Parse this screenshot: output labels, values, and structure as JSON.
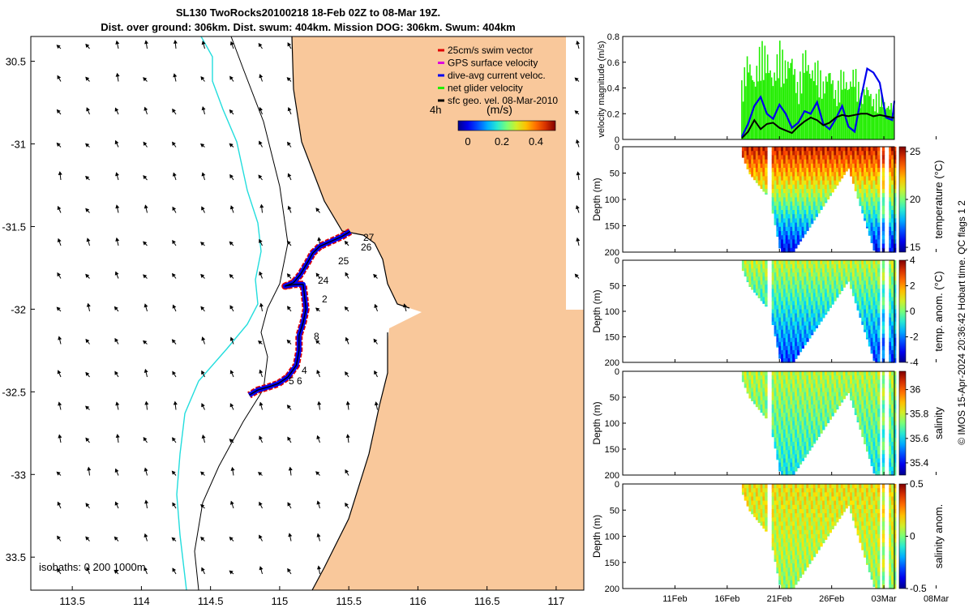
{
  "header": {
    "title_line1": "SL130 TwoRocks20100218 18-Feb 02Z to 08-Mar 19Z.",
    "title_line2": "Dist. over ground: 306km. Dist. swum: 404km. Mission DOG: 306km. Swum: 404km"
  },
  "side_stamp": "© IMOS 15-Apr-2024 20:36:42 Hobart time. QC flags 1  2",
  "colors": {
    "land": "#f9c89b",
    "isobath_coast": "#000000",
    "isobath_200": "#000000",
    "isobath_1000": "#22dddd",
    "swim_vector": "#e00000",
    "gps_velocity": "#dd00dd",
    "dive_current": "#0000ee",
    "net_velocity": "#22ee00",
    "sfc_geo": "#000000"
  },
  "map": {
    "legend": [
      {
        "label": "25cm/s swim vector",
        "color": "#e00000"
      },
      {
        "label": "GPS surface velocity",
        "color": "#dd00dd"
      },
      {
        "label": "dive-avg current veloc.",
        "color": "#0000ee"
      },
      {
        "label": "net glider velocity",
        "color": "#22ee00"
      },
      {
        "label": "sfc geo. vel. 08-Mar-2010",
        "color": "#000000"
      }
    ],
    "colorbar_timelabel": "4h",
    "colorbar_title": "(m/s)",
    "colorbar_ticks": [
      "0",
      "0.2",
      "0.4"
    ],
    "isobath_note": "isobaths: 0   200  1000m",
    "track_labels": [
      "27",
      "26",
      "25",
      "24",
      "2",
      "8",
      "4",
      "6",
      "5"
    ]
  },
  "chart_data": [
    {
      "type": "map",
      "title": "SL130 TwoRocks20100218 18-Feb 02Z to 08-Mar 19Z.",
      "xlim": [
        113.2,
        117.2
      ],
      "ylim": [
        -33.7,
        -30.35
      ],
      "x_ticks": [
        "113.5",
        "114",
        "114.5",
        "115",
        "115.5",
        "116",
        "116.5",
        "117"
      ],
      "y_ticks": [
        "30.5",
        "-31",
        "-31.5",
        "-32",
        "-32.5",
        "-33",
        "33.5"
      ],
      "glider_track": [
        [
          115.51,
          -31.53
        ],
        [
          115.45,
          -31.56
        ],
        [
          115.37,
          -31.59
        ],
        [
          115.29,
          -31.62
        ],
        [
          115.24,
          -31.66
        ],
        [
          115.2,
          -31.72
        ],
        [
          115.15,
          -31.79
        ],
        [
          115.1,
          -31.84
        ],
        [
          115.04,
          -31.86
        ],
        [
          115.11,
          -31.85
        ],
        [
          115.17,
          -31.85
        ],
        [
          115.18,
          -31.92
        ],
        [
          115.19,
          -32.0
        ],
        [
          115.17,
          -32.08
        ],
        [
          115.14,
          -32.16
        ],
        [
          115.14,
          -32.25
        ],
        [
          115.12,
          -32.34
        ],
        [
          115.06,
          -32.41
        ],
        [
          114.99,
          -32.45
        ],
        [
          114.92,
          -32.47
        ],
        [
          114.84,
          -32.49
        ],
        [
          114.78,
          -32.52
        ]
      ]
    },
    {
      "type": "line",
      "ylabel": "velocity magnitude (m/s)",
      "ylim": [
        0,
        0.8
      ],
      "y_ticks": [
        "0",
        "0.2",
        "0.4",
        "0.6",
        "0.8"
      ],
      "x_day_range": [
        6,
        32
      ],
      "series": [
        {
          "name": "dive-avg current veloc.",
          "color": "#0000ee",
          "x": [
            17.4,
            18,
            18.6,
            19.2,
            19.8,
            20.4,
            21,
            21.6,
            22.2,
            22.8,
            23.4,
            24,
            24.6,
            25.2,
            25.8,
            26.4,
            27,
            27.6,
            28.2,
            28.8,
            29.4,
            30,
            30.6,
            31.2,
            31.8,
            32
          ],
          "y": [
            0.02,
            0.12,
            0.26,
            0.33,
            0.2,
            0.16,
            0.27,
            0.2,
            0.09,
            0.13,
            0.22,
            0.2,
            0.29,
            0.12,
            0.08,
            0.16,
            0.26,
            0.1,
            0.06,
            0.32,
            0.55,
            0.52,
            0.44,
            0.17,
            0.15,
            0.3
          ]
        },
        {
          "name": "net glider velocity",
          "color": "#22ee00",
          "x": [
            17.4,
            18,
            18.6,
            19.2,
            19.8,
            20.4,
            21,
            21.6,
            22.2,
            22.8,
            23.4,
            24,
            24.6,
            25.2,
            25.8,
            26.4,
            27,
            27.6,
            28.2,
            28.8,
            29.4,
            30,
            30.6,
            31.2,
            31.8,
            32
          ],
          "y": [
            0.46,
            0.7,
            0.48,
            0.78,
            0.72,
            0.5,
            0.78,
            0.62,
            0.7,
            0.42,
            0.76,
            0.56,
            0.64,
            0.46,
            0.6,
            0.38,
            0.58,
            0.44,
            0.6,
            0.36,
            0.46,
            0.32,
            0.4,
            0.28,
            0.3,
            0.26
          ]
        },
        {
          "name": "sfc geo. vel. 08-Mar-2010",
          "color": "#000000",
          "x": [
            17.4,
            18,
            18.6,
            19.2,
            19.8,
            20.4,
            21,
            21.6,
            22.2,
            22.8,
            23.4,
            24,
            24.6,
            25.2,
            25.8,
            26.4,
            27,
            27.6,
            28.2,
            28.8,
            29.4,
            30,
            30.6,
            31.2,
            31.8,
            32
          ],
          "y": [
            0.01,
            0.06,
            0.15,
            0.08,
            0.12,
            0.13,
            0.09,
            0.07,
            0.05,
            0.1,
            0.14,
            0.17,
            0.15,
            0.11,
            0.13,
            0.17,
            0.19,
            0.18,
            0.19,
            0.2,
            0.2,
            0.18,
            0.19,
            0.18,
            0.17,
            0.17
          ]
        }
      ]
    },
    {
      "type": "heatmap",
      "ylabel": "Depth (m)",
      "colorbar_label": "temperature (°C)",
      "ylim": [
        0,
        200
      ],
      "y_ticks": [
        "0",
        "50",
        "100",
        "150",
        "200"
      ],
      "cbar_ticks": [
        "15",
        "20",
        "25"
      ],
      "cbar_range": [
        14.5,
        25.5
      ],
      "surface_value": 24.5,
      "deep_value": 15.5,
      "section_shape_day": [
        17.4,
        18.0,
        20.0,
        21.0,
        22.2,
        27.5,
        30.0,
        31.0,
        32.0
      ],
      "section_shape_depth": [
        20,
        50,
        100,
        200,
        200,
        40,
        200,
        200,
        200
      ]
    },
    {
      "type": "heatmap",
      "ylabel": "Depth (m)",
      "colorbar_label": "temp. anom. (°C)",
      "ylim": [
        0,
        200
      ],
      "y_ticks": [
        "0",
        "50",
        "100",
        "150",
        "200"
      ],
      "cbar_ticks": [
        "4",
        "2",
        "0",
        "-2",
        "-4"
      ],
      "cbar_range": [
        -4,
        4
      ],
      "surface_value": 0.6,
      "deep_value": -2.6
    },
    {
      "type": "heatmap",
      "ylabel": "Depth (m)",
      "colorbar_label": "salinity",
      "ylim": [
        0,
        200
      ],
      "y_ticks": [
        "0",
        "50",
        "100",
        "150",
        "200"
      ],
      "cbar_ticks": [
        "36",
        "35.8",
        "35.6",
        "35.4"
      ],
      "cbar_range": [
        35.3,
        36.15
      ],
      "surface_value": 35.78,
      "deep_value": 35.62
    },
    {
      "type": "heatmap",
      "ylabel": "Depth (m)",
      "colorbar_label": "salinity anom.",
      "ylim": [
        0,
        200
      ],
      "y_ticks": [
        "0",
        "50",
        "100",
        "150",
        "200"
      ],
      "cbar_ticks": [
        "0.5",
        "0",
        "-0.5"
      ],
      "cbar_range": [
        -0.5,
        0.5
      ],
      "surface_value": 0.14,
      "deep_value": 0.02,
      "x_ticks": [
        "11Feb",
        "16Feb",
        "21Feb",
        "26Feb",
        "03Mar",
        "08Mar"
      ],
      "x_tick_days": [
        11,
        16,
        21,
        26,
        31,
        36
      ]
    }
  ]
}
